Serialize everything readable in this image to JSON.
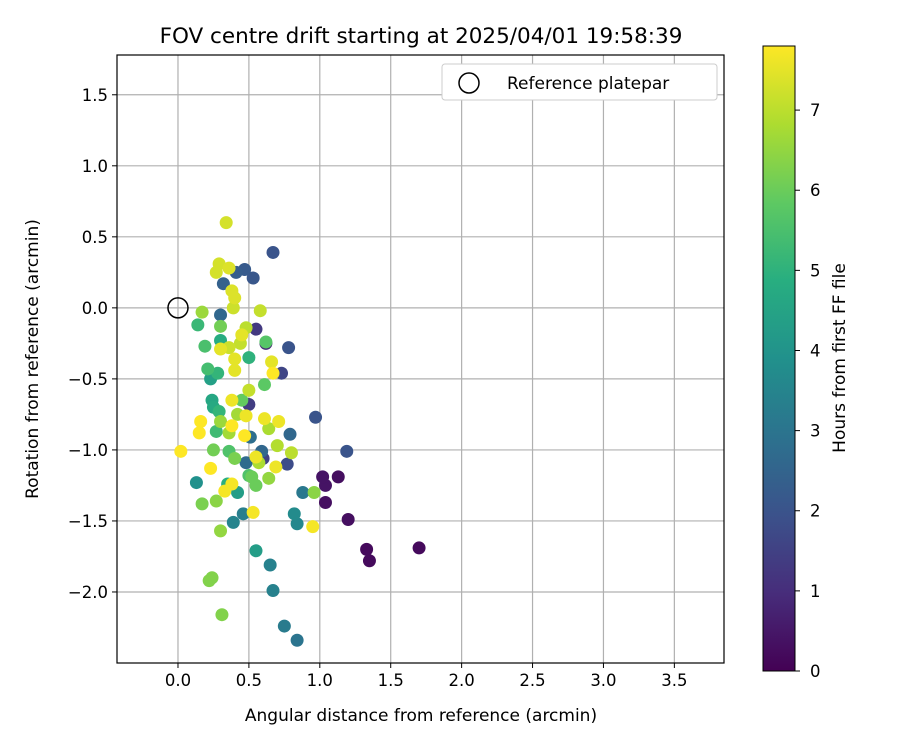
{
  "chart_data": {
    "type": "scatter",
    "title": "FOV centre drift starting at 2025/04/01 19:58:39",
    "xlabel": "Angular distance from reference (arcmin)",
    "ylabel": "Rotation from reference (arcmin)",
    "xlim": [
      -0.43,
      3.85
    ],
    "ylim": [
      -2.5,
      1.78
    ],
    "x_ticks": [
      0.0,
      0.5,
      1.0,
      1.5,
      2.0,
      2.5,
      3.0,
      3.5
    ],
    "x_tick_labels": [
      "0.0",
      "0.5",
      "1.0",
      "1.5",
      "2.0",
      "2.5",
      "3.0",
      "3.5"
    ],
    "y_ticks": [
      1.5,
      1.0,
      0.5,
      0.0,
      -0.5,
      -1.0,
      -1.5,
      -2.0
    ],
    "y_tick_labels": [
      "1.5",
      "1.0",
      "0.5",
      "0.0",
      "−0.5",
      "−1.0",
      "−1.5",
      "−2.0"
    ],
    "grid": true,
    "legend": {
      "position": "top-right",
      "entries": [
        {
          "label": "Reference platepar",
          "marker": "open-circle"
        }
      ]
    },
    "reference": {
      "x": 0.0,
      "y": 0.0
    },
    "colorbar": {
      "label": "Hours from first FF file",
      "range": [
        0,
        7.8
      ],
      "ticks": [
        0,
        1,
        2,
        3,
        4,
        5,
        6,
        7
      ],
      "tick_labels": [
        "0",
        "1",
        "2",
        "3",
        "4",
        "5",
        "6",
        "7"
      ],
      "colormap": "viridis"
    },
    "points": [
      {
        "x": 1.7,
        "y": -1.69,
        "h": 0.2
      },
      {
        "x": 1.35,
        "y": -1.78,
        "h": 0.2
      },
      {
        "x": 1.33,
        "y": -1.7,
        "h": 0.2
      },
      {
        "x": 1.2,
        "y": -1.49,
        "h": 0.3
      },
      {
        "x": 1.13,
        "y": -1.19,
        "h": 0.3
      },
      {
        "x": 1.04,
        "y": -1.37,
        "h": 0.3
      },
      {
        "x": 1.04,
        "y": -1.25,
        "h": 0.4
      },
      {
        "x": 1.02,
        "y": -1.19,
        "h": 0.4
      },
      {
        "x": 0.62,
        "y": -0.25,
        "h": 0.9
      },
      {
        "x": 0.55,
        "y": -0.15,
        "h": 1.3
      },
      {
        "x": 0.5,
        "y": -0.68,
        "h": 1.4
      },
      {
        "x": 0.6,
        "y": -1.06,
        "h": 1.5
      },
      {
        "x": 0.73,
        "y": -0.46,
        "h": 1.6
      },
      {
        "x": 0.77,
        "y": -1.1,
        "h": 1.8
      },
      {
        "x": 1.19,
        "y": -1.01,
        "h": 2.0
      },
      {
        "x": 0.97,
        "y": -0.77,
        "h": 2.0
      },
      {
        "x": 0.78,
        "y": -0.28,
        "h": 2.0
      },
      {
        "x": 0.67,
        "y": 0.39,
        "h": 2.0
      },
      {
        "x": 0.53,
        "y": 0.21,
        "h": 2.1
      },
      {
        "x": 0.47,
        "y": 0.27,
        "h": 2.2
      },
      {
        "x": 0.41,
        "y": 0.25,
        "h": 2.3
      },
      {
        "x": 0.32,
        "y": 0.17,
        "h": 2.4
      },
      {
        "x": 0.3,
        "y": -0.05,
        "h": 2.6
      },
      {
        "x": 0.79,
        "y": -0.89,
        "h": 2.6
      },
      {
        "x": 0.59,
        "y": -1.01,
        "h": 2.6
      },
      {
        "x": 0.48,
        "y": -1.09,
        "h": 2.7
      },
      {
        "x": 0.51,
        "y": -0.91,
        "h": 2.8
      },
      {
        "x": 0.84,
        "y": -2.34,
        "h": 3.0
      },
      {
        "x": 0.75,
        "y": -2.24,
        "h": 3.2
      },
      {
        "x": 0.88,
        "y": -1.3,
        "h": 3.1
      },
      {
        "x": 0.67,
        "y": -1.99,
        "h": 3.4
      },
      {
        "x": 0.65,
        "y": -1.81,
        "h": 3.4
      },
      {
        "x": 0.46,
        "y": -1.45,
        "h": 3.3
      },
      {
        "x": 0.39,
        "y": -1.51,
        "h": 3.5
      },
      {
        "x": 0.84,
        "y": -1.52,
        "h": 3.6
      },
      {
        "x": 0.82,
        "y": -1.45,
        "h": 3.7
      },
      {
        "x": 0.13,
        "y": -1.23,
        "h": 3.9
      },
      {
        "x": 0.55,
        "y": -1.71,
        "h": 4.3
      },
      {
        "x": 0.42,
        "y": -1.3,
        "h": 4.3
      },
      {
        "x": 0.23,
        "y": -0.5,
        "h": 4.4
      },
      {
        "x": 0.24,
        "y": -0.65,
        "h": 4.6
      },
      {
        "x": 0.25,
        "y": -0.7,
        "h": 4.7
      },
      {
        "x": 0.3,
        "y": -0.23,
        "h": 4.8
      },
      {
        "x": 0.35,
        "y": -1.24,
        "h": 4.9
      },
      {
        "x": 0.5,
        "y": -0.35,
        "h": 5.0
      },
      {
        "x": 0.28,
        "y": -0.46,
        "h": 5.1
      },
      {
        "x": 0.29,
        "y": -0.73,
        "h": 5.1
      },
      {
        "x": 0.14,
        "y": -0.12,
        "h": 5.2
      },
      {
        "x": 0.27,
        "y": -0.87,
        "h": 5.3
      },
      {
        "x": 0.21,
        "y": -0.43,
        "h": 5.4
      },
      {
        "x": 0.19,
        "y": -0.27,
        "h": 5.5
      },
      {
        "x": 0.36,
        "y": -1.01,
        "h": 5.6
      },
      {
        "x": 0.5,
        "y": -1.18,
        "h": 5.6
      },
      {
        "x": 0.62,
        "y": -0.24,
        "h": 5.7
      },
      {
        "x": 0.61,
        "y": -0.54,
        "h": 5.8
      },
      {
        "x": 0.45,
        "y": -0.65,
        "h": 5.9
      },
      {
        "x": 0.55,
        "y": -1.25,
        "h": 6.0
      },
      {
        "x": 0.52,
        "y": -1.19,
        "h": 6.0
      },
      {
        "x": 0.3,
        "y": -0.13,
        "h": 6.1
      },
      {
        "x": 0.25,
        "y": -1.0,
        "h": 6.1
      },
      {
        "x": 0.4,
        "y": -1.06,
        "h": 6.2
      },
      {
        "x": 0.17,
        "y": -1.38,
        "h": 6.2
      },
      {
        "x": 0.24,
        "y": -1.9,
        "h": 6.3
      },
      {
        "x": 0.22,
        "y": -1.92,
        "h": 6.3
      },
      {
        "x": 0.31,
        "y": -2.16,
        "h": 6.3
      },
      {
        "x": 0.96,
        "y": -1.3,
        "h": 6.4
      },
      {
        "x": 0.27,
        "y": -1.36,
        "h": 6.4
      },
      {
        "x": 0.3,
        "y": -1.57,
        "h": 6.5
      },
      {
        "x": 0.64,
        "y": -1.2,
        "h": 6.5
      },
      {
        "x": 0.17,
        "y": -0.03,
        "h": 6.6
      },
      {
        "x": 0.3,
        "y": -0.8,
        "h": 6.6
      },
      {
        "x": 0.36,
        "y": -0.88,
        "h": 6.7
      },
      {
        "x": 0.42,
        "y": -0.75,
        "h": 6.7
      },
      {
        "x": 0.57,
        "y": -1.09,
        "h": 6.8
      },
      {
        "x": 0.64,
        "y": -0.85,
        "h": 6.8
      },
      {
        "x": 0.7,
        "y": -0.97,
        "h": 6.9
      },
      {
        "x": 0.8,
        "y": -1.02,
        "h": 7.0
      },
      {
        "x": 0.48,
        "y": -0.14,
        "h": 7.0
      },
      {
        "x": 0.44,
        "y": -0.25,
        "h": 7.1
      },
      {
        "x": 0.5,
        "y": -0.58,
        "h": 7.1
      },
      {
        "x": 0.58,
        "y": -0.02,
        "h": 7.1
      },
      {
        "x": 0.39,
        "y": 0.0,
        "h": 7.2
      },
      {
        "x": 0.36,
        "y": -0.28,
        "h": 7.2
      },
      {
        "x": 0.29,
        "y": 0.31,
        "h": 7.3
      },
      {
        "x": 0.27,
        "y": 0.25,
        "h": 7.3
      },
      {
        "x": 0.34,
        "y": 0.6,
        "h": 7.3
      },
      {
        "x": 0.36,
        "y": 0.28,
        "h": 7.4
      },
      {
        "x": 0.38,
        "y": 0.12,
        "h": 7.4
      },
      {
        "x": 0.4,
        "y": 0.07,
        "h": 7.4
      },
      {
        "x": 0.3,
        "y": -0.29,
        "h": 7.5
      },
      {
        "x": 0.45,
        "y": -0.19,
        "h": 7.5
      },
      {
        "x": 0.4,
        "y": -0.36,
        "h": 7.5
      },
      {
        "x": 0.4,
        "y": -0.44,
        "h": 7.5
      },
      {
        "x": 0.66,
        "y": -0.38,
        "h": 7.5
      },
      {
        "x": 0.61,
        "y": -0.78,
        "h": 7.6
      },
      {
        "x": 0.48,
        "y": -0.76,
        "h": 7.6
      },
      {
        "x": 0.38,
        "y": -0.65,
        "h": 7.6
      },
      {
        "x": 0.71,
        "y": -0.8,
        "h": 7.6
      },
      {
        "x": 0.69,
        "y": -1.12,
        "h": 7.6
      },
      {
        "x": 0.55,
        "y": -1.05,
        "h": 7.6
      },
      {
        "x": 0.33,
        "y": -1.29,
        "h": 7.7
      },
      {
        "x": 0.38,
        "y": -1.24,
        "h": 7.7
      },
      {
        "x": 0.53,
        "y": -1.44,
        "h": 7.7
      },
      {
        "x": 0.95,
        "y": -1.54,
        "h": 7.7
      },
      {
        "x": 0.47,
        "y": -0.9,
        "h": 7.8
      },
      {
        "x": 0.38,
        "y": -0.83,
        "h": 7.8
      },
      {
        "x": 0.16,
        "y": -0.8,
        "h": 7.8
      },
      {
        "x": 0.15,
        "y": -0.88,
        "h": 7.8
      },
      {
        "x": 0.02,
        "y": -1.01,
        "h": 7.8
      },
      {
        "x": 0.23,
        "y": -1.13,
        "h": 7.8
      },
      {
        "x": 0.67,
        "y": -0.46,
        "h": 7.8
      }
    ]
  }
}
